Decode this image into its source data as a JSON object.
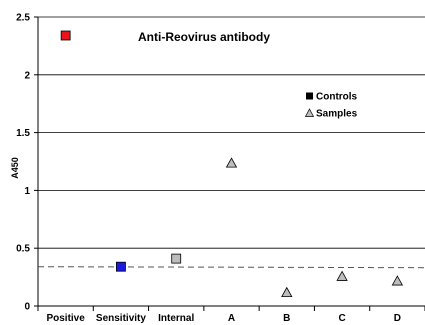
{
  "chart_data": {
    "type": "scatter",
    "title": "Anti-Reovirus antibody",
    "ylabel": "A450",
    "xlabel": "",
    "ylim": [
      0,
      2.5
    ],
    "yticks": [
      "0",
      "0.5",
      "1",
      "1.5",
      "2",
      "2.5"
    ],
    "ytick_values": [
      0,
      0.5,
      1,
      1.5,
      2,
      2.5
    ],
    "categories": [
      "Positive",
      "Sensitivity",
      "Internal",
      "A",
      "B",
      "C",
      "D"
    ],
    "grid": true,
    "legend_position": "right",
    "cutoff_line": 0.34,
    "series": [
      {
        "name": "Controls",
        "marker": "square",
        "points": [
          {
            "category": "Positive",
            "value": 2.34,
            "color": "#e8141c"
          },
          {
            "category": "Sensitivity",
            "value": 0.34,
            "color": "#1a1ae0"
          },
          {
            "category": "Internal",
            "value": 0.41,
            "color": "#bdbdbd"
          }
        ]
      },
      {
        "name": "Samples",
        "marker": "triangle",
        "points": [
          {
            "category": "A",
            "value": 1.24,
            "color": "#bdbdbd"
          },
          {
            "category": "B",
            "value": 0.12,
            "color": "#bdbdbd"
          },
          {
            "category": "C",
            "value": 0.26,
            "color": "#bdbdbd"
          },
          {
            "category": "D",
            "value": 0.22,
            "color": "#bdbdbd"
          }
        ]
      }
    ],
    "legend": [
      {
        "label": "Controls",
        "marker": "square",
        "color": "#000000"
      },
      {
        "label": "Samples",
        "marker": "triangle",
        "color": "#bdbdbd"
      }
    ]
  }
}
